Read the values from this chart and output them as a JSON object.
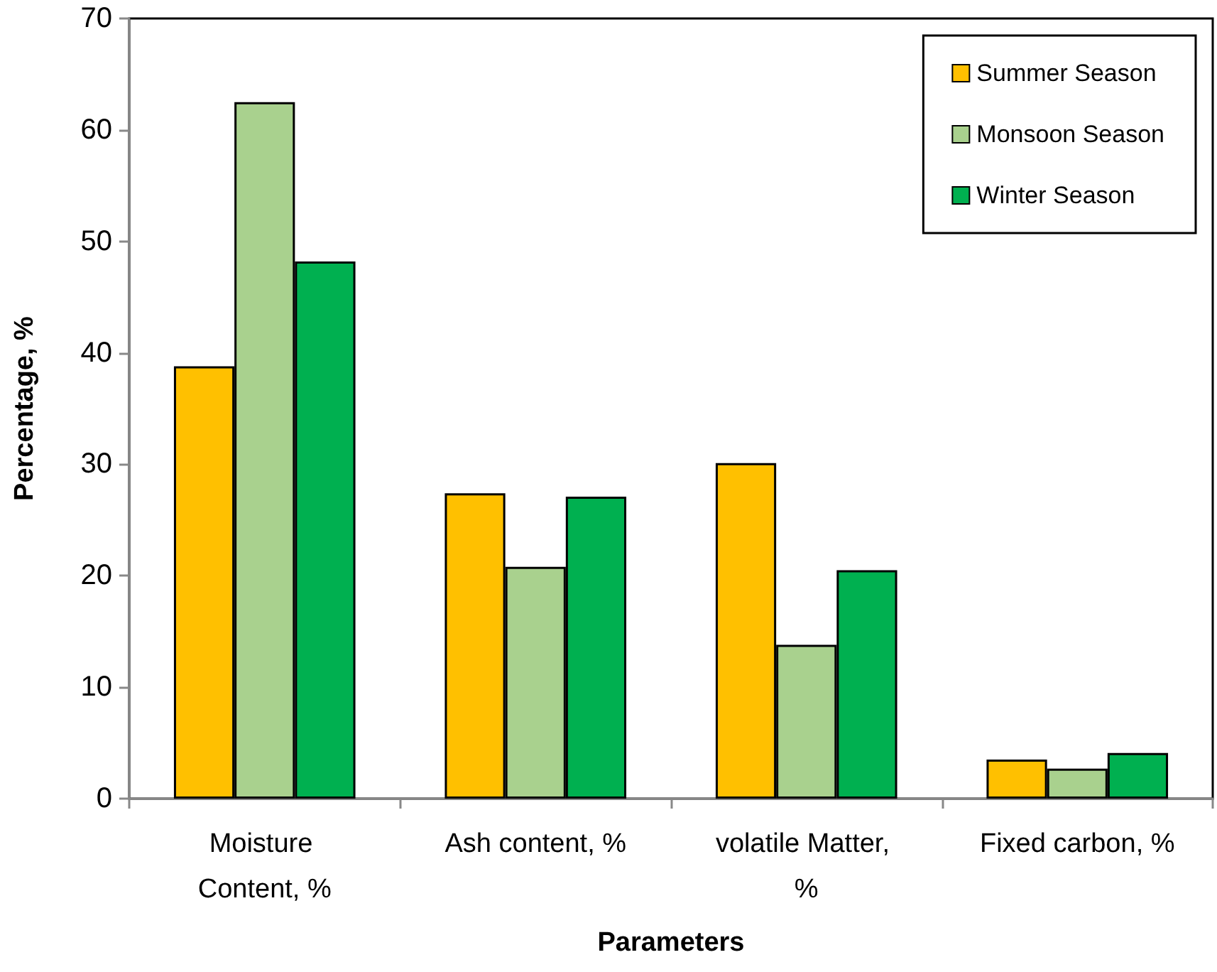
{
  "chart_data": {
    "type": "bar",
    "xlabel": "Parameters",
    "ylabel": "Percentage, %",
    "categories": [
      "Moisture Content, %",
      "Ash content, %",
      "volatile Matter, %",
      "Fixed carbon, %"
    ],
    "series": [
      {
        "name": "Summer Season",
        "color": "#ffc000",
        "values": [
          38.8,
          27.4,
          30.1,
          3.5
        ]
      },
      {
        "name": "Monsoon Season",
        "color": "#a9d18e",
        "values": [
          62.5,
          20.8,
          13.8,
          2.7
        ]
      },
      {
        "name": "Winter Season",
        "color": "#00b050",
        "values": [
          48.2,
          27.1,
          20.5,
          4.1
        ]
      }
    ],
    "ylim": [
      0,
      70
    ],
    "yticks": [
      0,
      10,
      20,
      30,
      40,
      50,
      60,
      70
    ],
    "legend": "top right"
  }
}
